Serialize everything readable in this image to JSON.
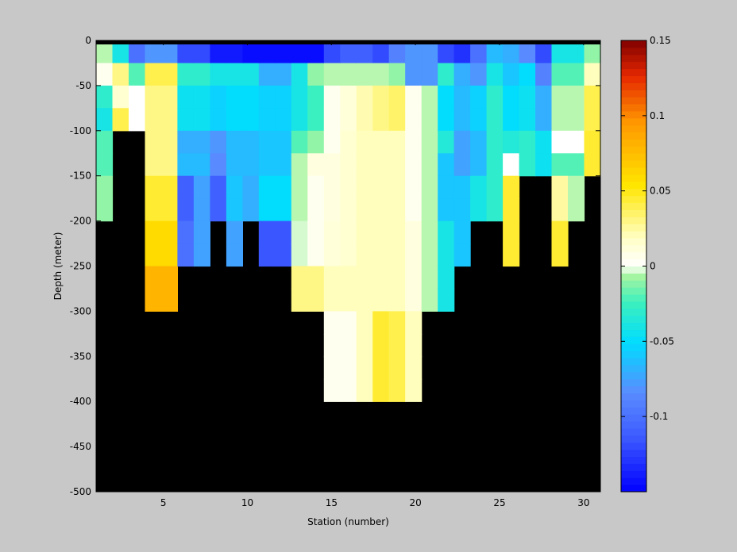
{
  "chart_data": {
    "type": "heatmap",
    "title": "",
    "xlabel": "Station (number)",
    "ylabel": "Depth (meter)",
    "xlim": [
      1,
      31
    ],
    "ylim": [
      -500,
      0
    ],
    "x_ticks": [
      5,
      10,
      15,
      20,
      25,
      30
    ],
    "y_ticks": [
      0,
      -50,
      -100,
      -150,
      -200,
      -250,
      -300,
      -350,
      -400,
      -450,
      -500
    ],
    "depth_bins": [
      0,
      -25,
      -50,
      -75,
      -100,
      -125,
      -150,
      -175,
      -200,
      -225,
      -250,
      -275,
      -300,
      -325,
      -350,
      -375,
      -400,
      -425,
      -450,
      -475,
      -500
    ],
    "colorbar": {
      "clim": [
        -0.15,
        0.15
      ],
      "ticks": [
        -0.1,
        -0.05,
        0,
        0.05,
        0.1,
        0.15
      ],
      "tick_labels": [
        "-0.1",
        "-0.05",
        "0",
        "0.05",
        "0.1",
        "0.15"
      ]
    },
    "background_color": "#000000",
    "stations": [
      {
        "station": 1,
        "values": [
          -0.005,
          0.005,
          -0.03,
          -0.04,
          -0.02,
          -0.02,
          -0.01,
          -0.01
        ]
      },
      {
        "station": 2,
        "values": [
          -0.04,
          0.03,
          0.015,
          0.04
        ]
      },
      {
        "station": 3,
        "values": [
          -0.1,
          -0.02,
          0.0,
          0.0
        ]
      },
      {
        "station": 4,
        "values": [
          -0.08,
          0.04,
          0.03,
          0.03,
          0.03,
          0.03,
          0.045,
          0.045,
          0.06,
          0.06,
          0.08,
          0.08
        ]
      },
      {
        "station": 5,
        "values": [
          -0.08,
          0.04,
          0.03,
          0.03,
          0.03,
          0.03,
          0.045,
          0.045,
          0.06,
          0.06,
          0.08,
          0.08
        ]
      },
      {
        "station": 6,
        "values": [
          -0.12,
          -0.03,
          -0.045,
          -0.045,
          -0.07,
          -0.065,
          -0.11,
          -0.11,
          -0.1,
          -0.1
        ]
      },
      {
        "station": 7,
        "values": [
          -0.12,
          -0.03,
          -0.045,
          -0.045,
          -0.07,
          -0.065,
          -0.075,
          -0.075,
          -0.075,
          -0.075
        ]
      },
      {
        "station": 8,
        "values": [
          -0.14,
          -0.04,
          -0.055,
          -0.055,
          -0.08,
          -0.085,
          -0.11,
          -0.11
        ]
      },
      {
        "station": 9,
        "values": [
          -0.14,
          -0.04,
          -0.05,
          -0.05,
          -0.065,
          -0.065,
          -0.06,
          -0.06,
          -0.075,
          -0.075
        ]
      },
      {
        "station": 10,
        "values": [
          -0.145,
          -0.04,
          -0.05,
          -0.05,
          -0.065,
          -0.065,
          -0.07,
          -0.07
        ]
      },
      {
        "station": 11,
        "values": [
          -0.145,
          -0.07,
          -0.055,
          -0.055,
          -0.06,
          -0.06,
          -0.05,
          -0.05,
          -0.115,
          -0.115
        ]
      },
      {
        "station": 12,
        "values": [
          -0.145,
          -0.07,
          -0.055,
          -0.055,
          -0.06,
          -0.06,
          -0.05,
          -0.05,
          -0.115,
          -0.115
        ]
      },
      {
        "station": 13,
        "values": [
          -0.145,
          -0.04,
          -0.04,
          -0.04,
          -0.02,
          -0.005,
          -0.005,
          -0.005,
          -0.003,
          -0.003,
          0.03,
          0.03
        ]
      },
      {
        "station": 14,
        "values": [
          -0.145,
          -0.01,
          -0.025,
          -0.025,
          -0.01,
          0.01,
          0.005,
          0.005,
          0.005,
          0.005,
          0.03,
          0.03
        ]
      },
      {
        "station": 15,
        "values": [
          -0.12,
          -0.005,
          0.005,
          0.005,
          0.005,
          0.01,
          0.01,
          0.01,
          0.012,
          0.012,
          0.02,
          0.02,
          0.005,
          0.005,
          0.005,
          0.005
        ]
      },
      {
        "station": 16,
        "values": [
          -0.11,
          -0.005,
          0.012,
          0.012,
          0.015,
          0.015,
          0.015,
          0.015,
          0.015,
          0.015,
          0.02,
          0.02,
          0.005,
          0.005,
          0.005,
          0.005
        ]
      },
      {
        "station": 17,
        "values": [
          -0.11,
          -0.005,
          0.022,
          0.022,
          0.02,
          0.02,
          0.02,
          0.02,
          0.02,
          0.02,
          0.02,
          0.02,
          0.02,
          0.02,
          0.02,
          0.02
        ]
      },
      {
        "station": 18,
        "values": [
          -0.12,
          -0.005,
          0.03,
          0.03,
          0.02,
          0.02,
          0.02,
          0.02,
          0.02,
          0.02,
          0.02,
          0.02,
          0.045,
          0.045,
          0.045,
          0.045
        ]
      },
      {
        "station": 19,
        "values": [
          -0.09,
          -0.01,
          0.035,
          0.035,
          0.02,
          0.02,
          0.02,
          0.02,
          0.02,
          0.02,
          0.02,
          0.02,
          0.04,
          0.04,
          0.04,
          0.04
        ]
      },
      {
        "station": 20,
        "values": [
          -0.08,
          -0.08,
          0.005,
          0.005,
          0.005,
          0.005,
          0.005,
          0.005,
          0.01,
          0.01,
          0.01,
          0.01,
          0.02,
          0.02,
          0.02,
          0.02
        ]
      },
      {
        "station": 21,
        "values": [
          -0.08,
          -0.08,
          -0.005,
          -0.005,
          -0.005,
          -0.005,
          -0.005,
          -0.005,
          -0.005,
          -0.005,
          -0.005,
          -0.005
        ]
      },
      {
        "station": 22,
        "values": [
          -0.12,
          -0.03,
          -0.05,
          -0.05,
          -0.035,
          -0.06,
          -0.06,
          -0.06,
          -0.04,
          -0.04,
          -0.04,
          -0.04
        ]
      },
      {
        "station": 23,
        "values": [
          -0.13,
          -0.07,
          -0.065,
          -0.065,
          -0.075,
          -0.075,
          -0.06,
          -0.06,
          -0.06,
          -0.06
        ]
      },
      {
        "station": 24,
        "values": [
          -0.1,
          -0.08,
          -0.055,
          -0.055,
          -0.065,
          -0.065,
          -0.04,
          -0.04
        ]
      },
      {
        "station": 25,
        "values": [
          -0.065,
          -0.04,
          -0.03,
          -0.03,
          -0.03,
          -0.03,
          -0.03,
          -0.03
        ]
      },
      {
        "station": 26,
        "values": [
          -0.07,
          -0.06,
          -0.05,
          -0.05,
          -0.035,
          0.0,
          0.045,
          0.045,
          0.045,
          0.045
        ]
      },
      {
        "station": 27,
        "values": [
          -0.085,
          -0.05,
          -0.045,
          -0.045,
          -0.03,
          -0.03
        ]
      },
      {
        "station": 28,
        "values": [
          -0.12,
          -0.09,
          -0.07,
          -0.07,
          -0.045,
          -0.045
        ]
      },
      {
        "station": 29,
        "values": [
          -0.04,
          -0.02,
          -0.005,
          -0.005,
          0.0,
          -0.02,
          0.025,
          0.025,
          0.045,
          0.045
        ]
      },
      {
        "station": 30,
        "values": [
          -0.04,
          -0.02,
          -0.005,
          -0.005,
          0.0,
          -0.02,
          -0.005,
          -0.005
        ]
      },
      {
        "station": 31,
        "values": [
          -0.01,
          0.02,
          0.04,
          0.04,
          0.045,
          0.045
        ]
      }
    ]
  }
}
